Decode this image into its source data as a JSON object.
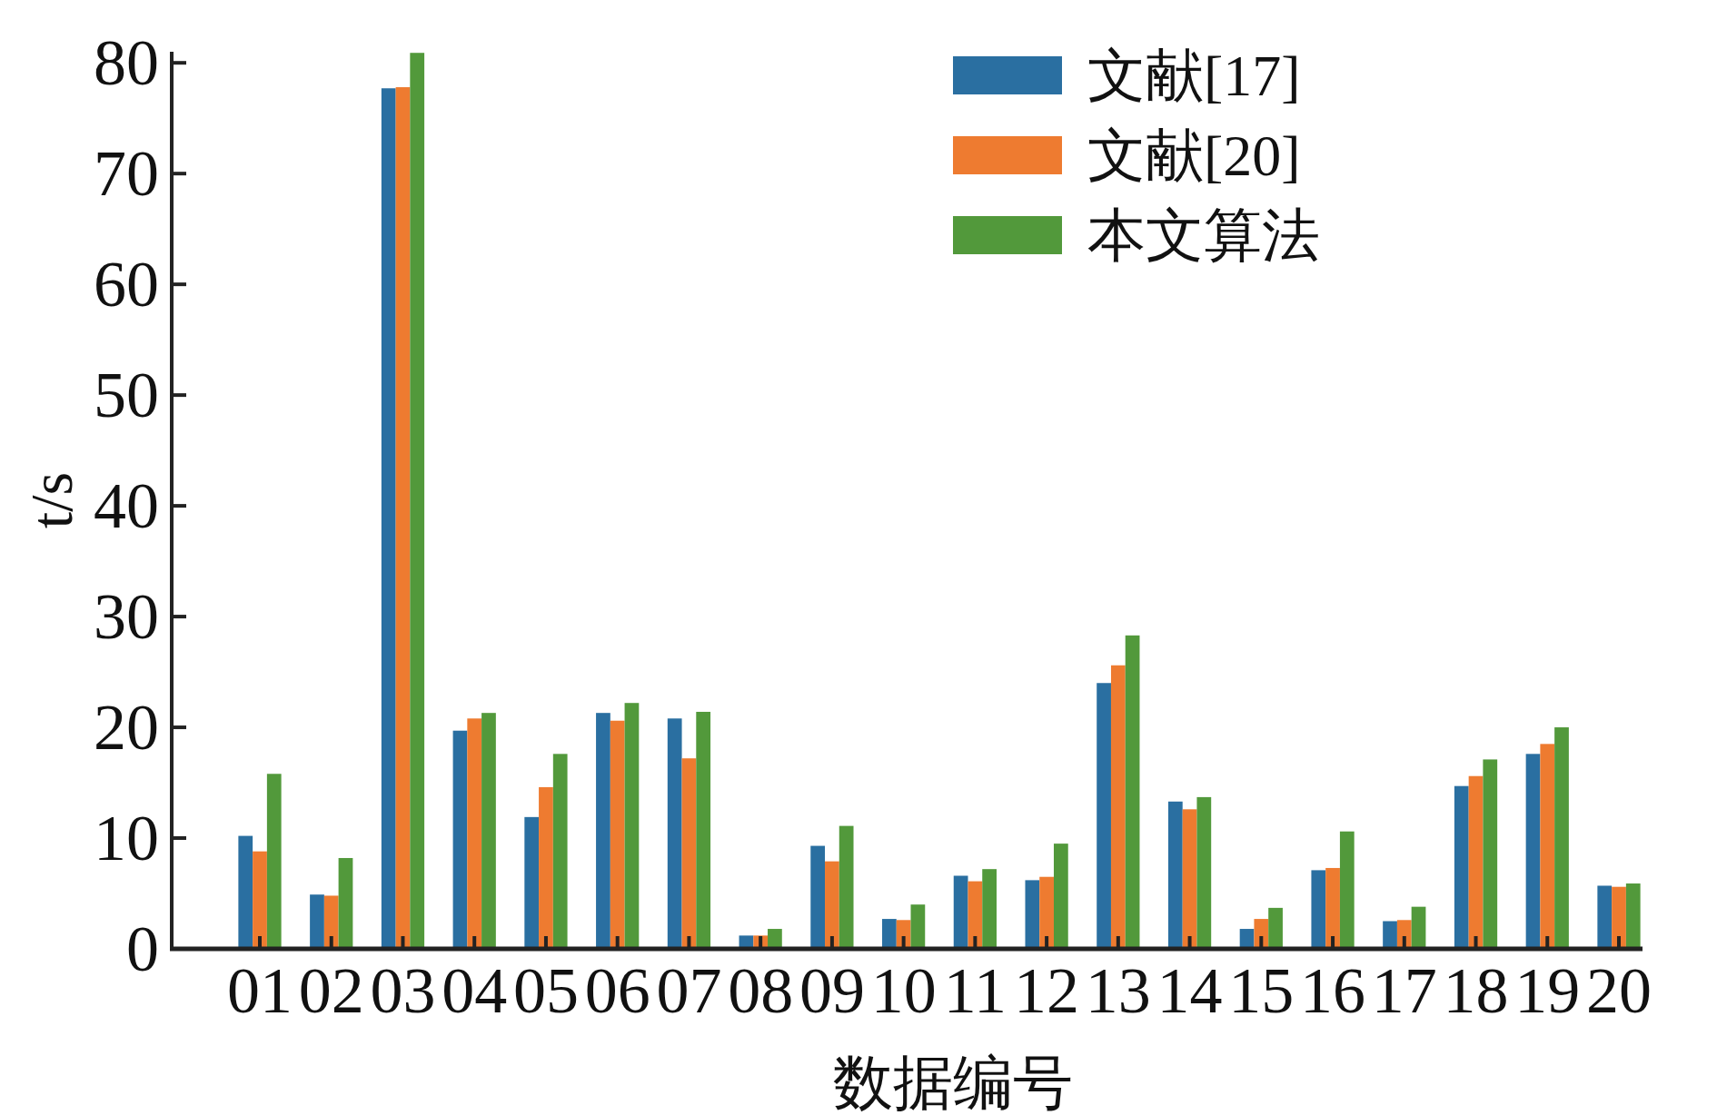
{
  "chart_data": {
    "type": "bar",
    "xlabel": "数据编号",
    "ylabel": "t/s",
    "categories": [
      "01",
      "02",
      "03",
      "04",
      "05",
      "06",
      "07",
      "08",
      "09",
      "10",
      "11",
      "12",
      "13",
      "14",
      "15",
      "16",
      "17",
      "18",
      "19",
      "20"
    ],
    "series": [
      {
        "name": "文献[17]",
        "color": "#2a6fa1",
        "values": [
          10.2,
          4.9,
          77.7,
          19.7,
          11.9,
          21.3,
          20.8,
          1.2,
          9.3,
          2.7,
          6.6,
          6.2,
          24.0,
          13.3,
          1.8,
          7.1,
          2.5,
          14.7,
          17.6,
          5.7
        ]
      },
      {
        "name": "文献[20]",
        "color": "#ee7b30",
        "values": [
          8.8,
          4.8,
          77.8,
          20.8,
          14.6,
          20.6,
          17.2,
          1.2,
          7.9,
          2.6,
          6.1,
          6.5,
          25.6,
          12.6,
          2.7,
          7.3,
          2.6,
          15.6,
          18.5,
          5.6
        ]
      },
      {
        "name": "本文算法",
        "color": "#52993b",
        "values": [
          15.8,
          8.2,
          80.9,
          21.3,
          17.6,
          22.2,
          21.4,
          1.8,
          11.1,
          4.0,
          7.2,
          9.5,
          28.3,
          13.7,
          3.7,
          10.6,
          3.8,
          17.1,
          20.0,
          5.9
        ]
      }
    ],
    "ylim": [
      0,
      81
    ],
    "yticks": [
      0,
      10,
      20,
      30,
      40,
      50,
      60,
      70,
      80
    ],
    "grid": false,
    "legend": "top right"
  }
}
